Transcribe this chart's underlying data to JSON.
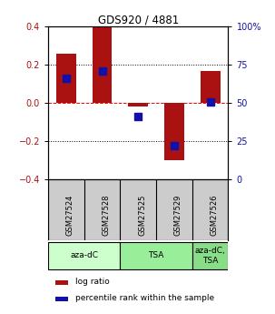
{
  "title": "GDS920 / 4881",
  "samples": [
    "GSM27524",
    "GSM27528",
    "GSM27525",
    "GSM27529",
    "GSM27526"
  ],
  "log_ratios": [
    0.26,
    0.4,
    -0.02,
    -0.3,
    0.17
  ],
  "percentile_rank_values": [
    66,
    71,
    41,
    22,
    51
  ],
  "bar_color": "#aa1111",
  "dot_color": "#1111aa",
  "ylim": [
    -0.4,
    0.4
  ],
  "yticks_left": [
    -0.4,
    -0.2,
    0.0,
    0.2,
    0.4
  ],
  "yticks_right": [
    0,
    25,
    50,
    75,
    100
  ],
  "hlines_dotted": [
    -0.2,
    0.2
  ],
  "hline_dashed": 0.0,
  "agent_groups": [
    {
      "label": "aza-dC",
      "span": [
        0,
        2
      ],
      "color": "#ccffcc"
    },
    {
      "label": "TSA",
      "span": [
        2,
        4
      ],
      "color": "#99ee99"
    },
    {
      "label": "aza-dC,\nTSA",
      "span": [
        4,
        5
      ],
      "color": "#88dd88"
    }
  ],
  "legend_log_ratio": "log ratio",
  "legend_percentile": "percentile rank within the sample",
  "bar_width": 0.55,
  "dot_size": 28,
  "background_color": "#ffffff",
  "plot_bg_color": "#ffffff",
  "label_row_bg": "#cccccc",
  "right_tick_labels": [
    "0",
    "25",
    "50",
    "75",
    "100%"
  ]
}
